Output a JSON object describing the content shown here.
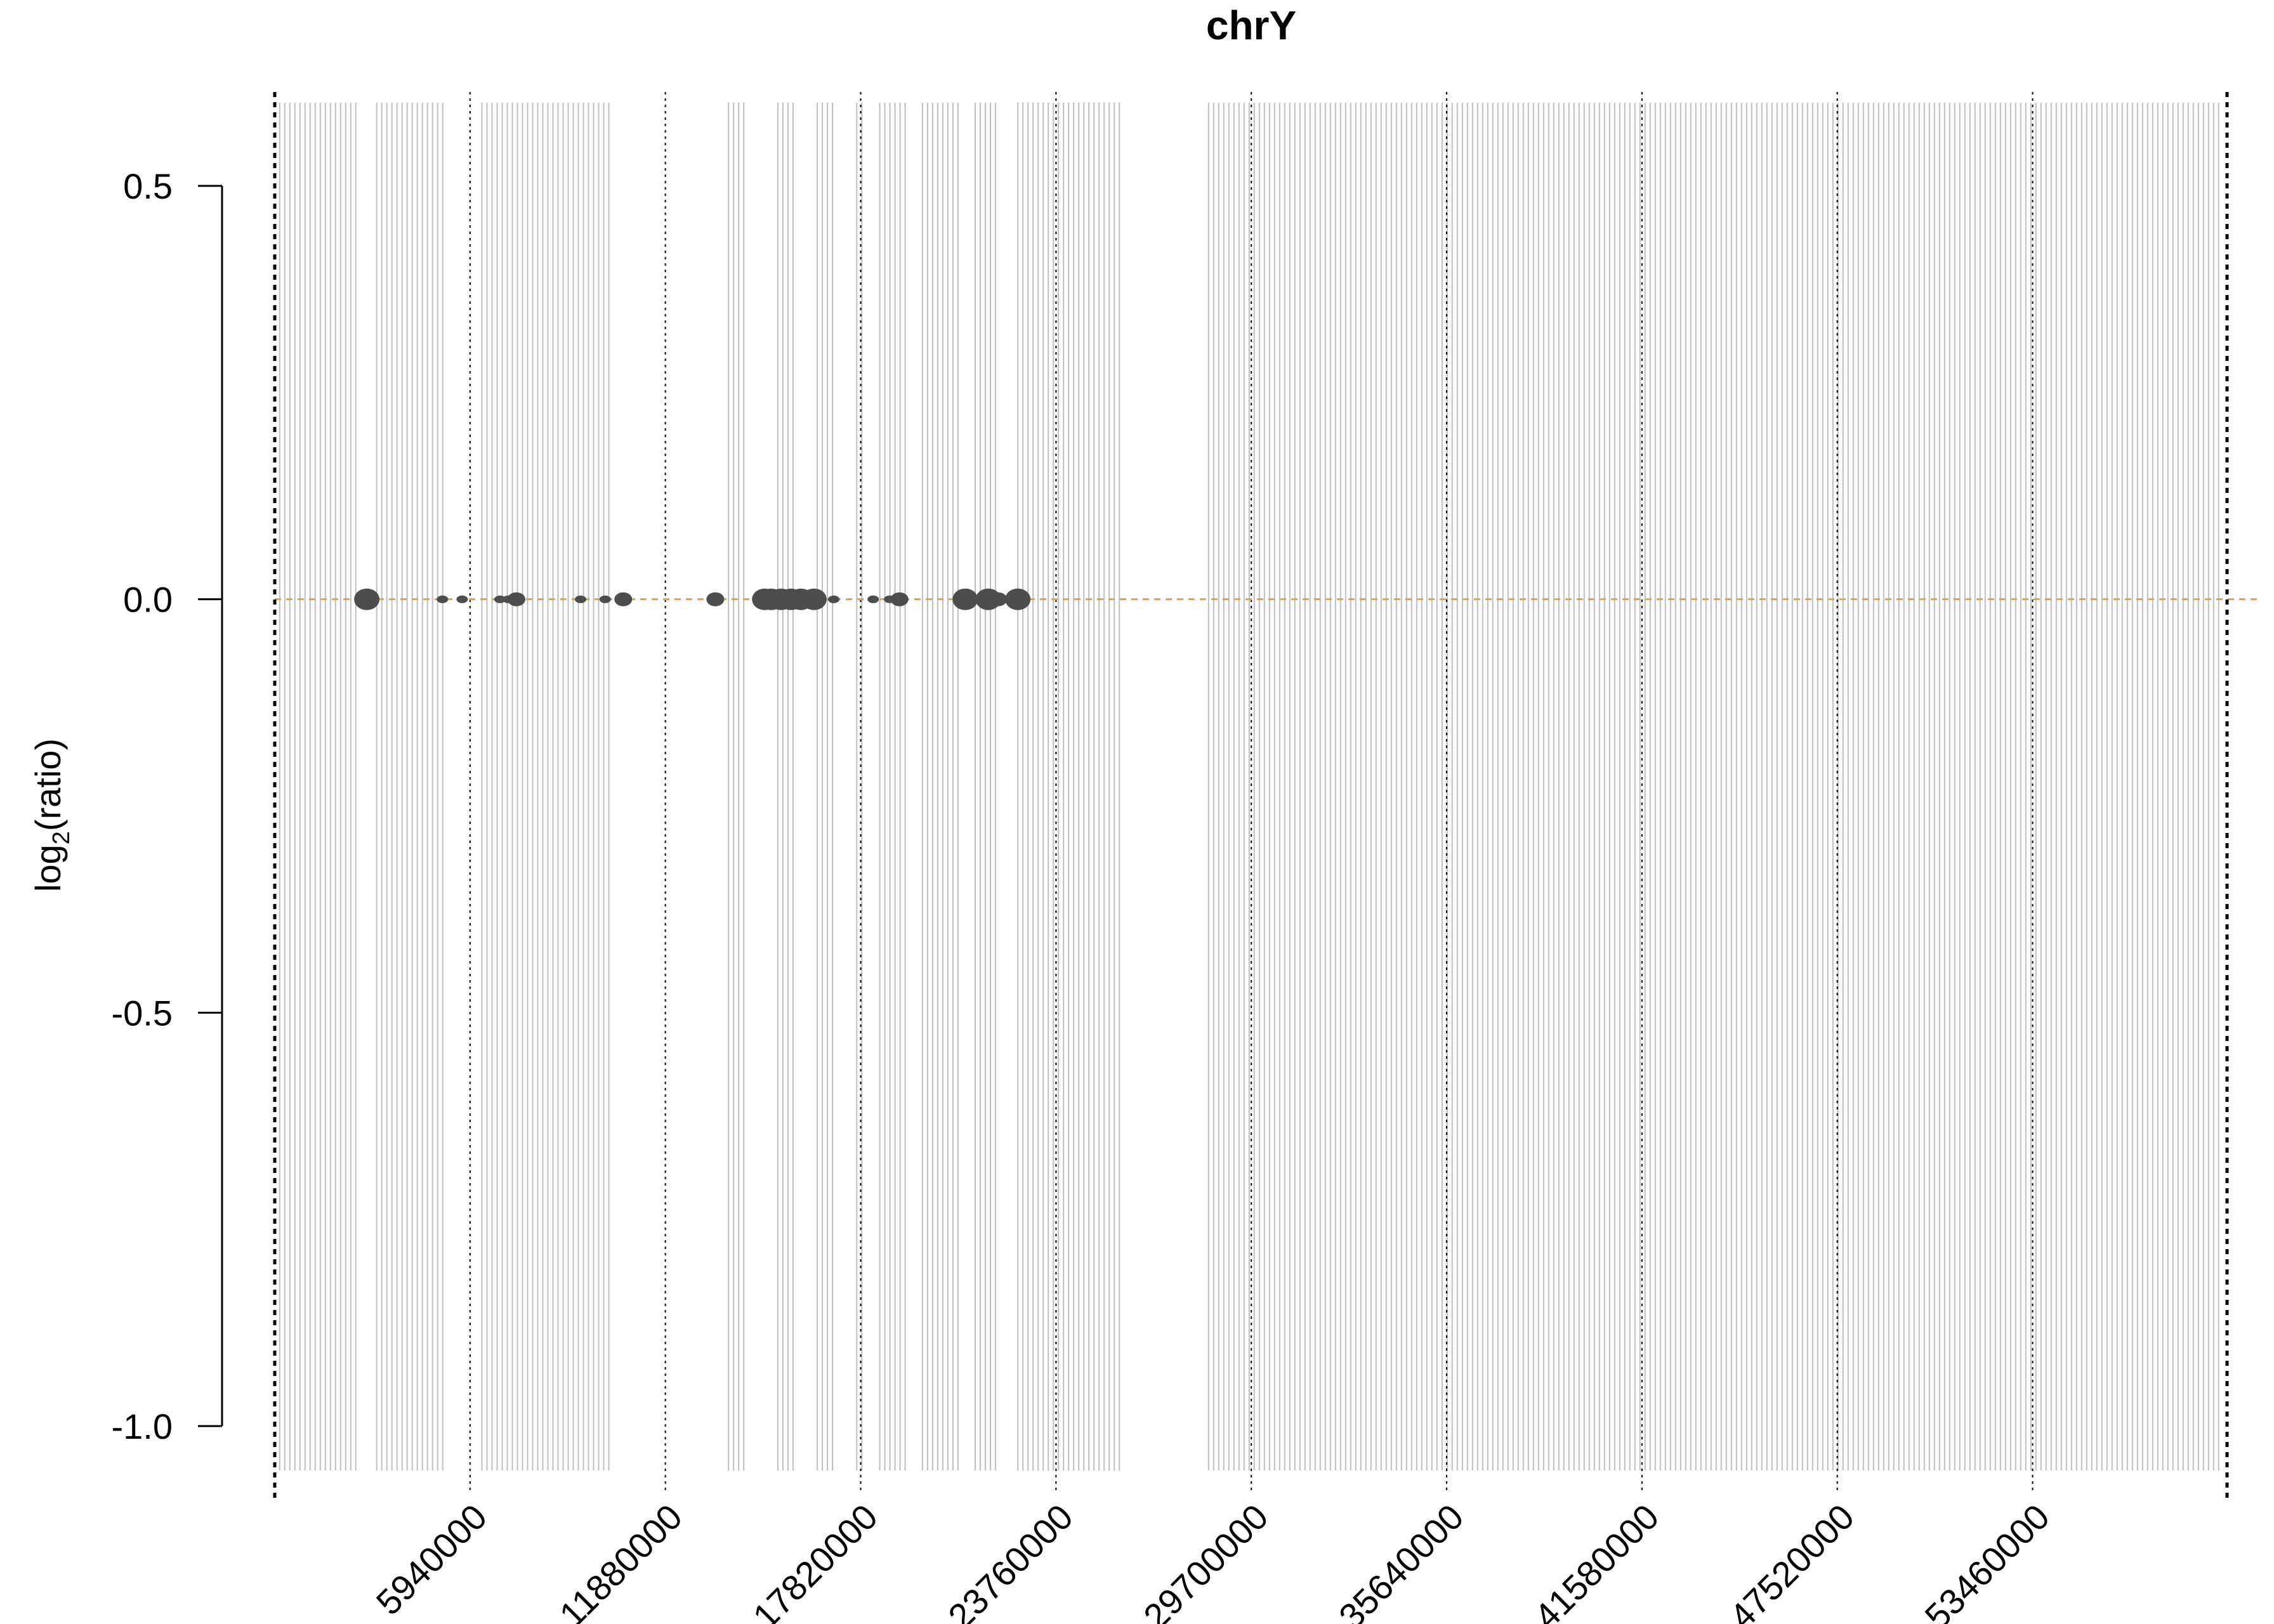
{
  "chart_data": {
    "type": "scatter",
    "title": "chrY",
    "xlabel": "",
    "ylabel": "log2(ratio)",
    "ylabel_base": "log",
    "ylabel_sub": "2",
    "ylabel_rest": "(ratio)",
    "xlim": [
      0,
      59373566
    ],
    "ylim": [
      -1.0,
      0.6
    ],
    "x_ticks": [
      5940000,
      11880000,
      17820000,
      23760000,
      29700000,
      35640000,
      41580000,
      47520000,
      53460000
    ],
    "x_tick_labels": [
      "5940000",
      "11880000",
      "17820000",
      "23760000",
      "29700000",
      "35640000",
      "41580000",
      "47520000",
      "53460000"
    ],
    "y_ticks": [
      0.5,
      0.0,
      -0.5,
      -1.0
    ],
    "y_tick_labels": [
      "0.5",
      "0.0",
      "-0.5",
      "-1.0"
    ],
    "reference_line": 0.0,
    "colors": {
      "points": "#4d4d4d",
      "masked_lines": "#bebebe",
      "reference_line": "#c8a96e",
      "boundary_lines": "#000000"
    },
    "masked_regions": [
      [
        150000,
        2600000
      ],
      [
        3100000,
        5200000
      ],
      [
        6300000,
        10200000
      ],
      [
        13800000,
        14300000
      ],
      [
        15300000,
        15900000
      ],
      [
        16500000,
        17100000
      ],
      [
        17700000,
        18000000
      ],
      [
        18400000,
        19200000
      ],
      [
        19700000,
        20800000
      ],
      [
        21300000,
        22000000
      ],
      [
        22600000,
        25700000
      ],
      [
        28400000,
        59200000
      ]
    ],
    "points": [
      {
        "x": 2800000,
        "y": 0.0,
        "size": "large"
      },
      {
        "x": 5100000,
        "y": 0.0,
        "size": "small"
      },
      {
        "x": 5700000,
        "y": 0.0,
        "size": "small"
      },
      {
        "x": 6850000,
        "y": 0.0,
        "size": "small"
      },
      {
        "x": 7100000,
        "y": 0.0,
        "size": "small"
      },
      {
        "x": 7350000,
        "y": 0.0,
        "size": "medium"
      },
      {
        "x": 9300000,
        "y": 0.0,
        "size": "small"
      },
      {
        "x": 10050000,
        "y": 0.0,
        "size": "small"
      },
      {
        "x": 10600000,
        "y": 0.0,
        "size": "medium"
      },
      {
        "x": 13400000,
        "y": 0.0,
        "size": "medium"
      },
      {
        "x": 14900000,
        "y": 0.0,
        "size": "large"
      },
      {
        "x": 15100000,
        "y": 0.0,
        "size": "large"
      },
      {
        "x": 15400000,
        "y": 0.0,
        "size": "large"
      },
      {
        "x": 15700000,
        "y": 0.0,
        "size": "large"
      },
      {
        "x": 16000000,
        "y": 0.0,
        "size": "large"
      },
      {
        "x": 16400000,
        "y": 0.0,
        "size": "large"
      },
      {
        "x": 17000000,
        "y": 0.0,
        "size": "small"
      },
      {
        "x": 18200000,
        "y": 0.0,
        "size": "small"
      },
      {
        "x": 18700000,
        "y": 0.0,
        "size": "small"
      },
      {
        "x": 19000000,
        "y": 0.0,
        "size": "medium"
      },
      {
        "x": 21000000,
        "y": 0.0,
        "size": "large"
      },
      {
        "x": 21700000,
        "y": 0.0,
        "size": "large"
      },
      {
        "x": 22000000,
        "y": 0.0,
        "size": "medium"
      },
      {
        "x": 22600000,
        "y": 0.0,
        "size": "large"
      }
    ]
  }
}
